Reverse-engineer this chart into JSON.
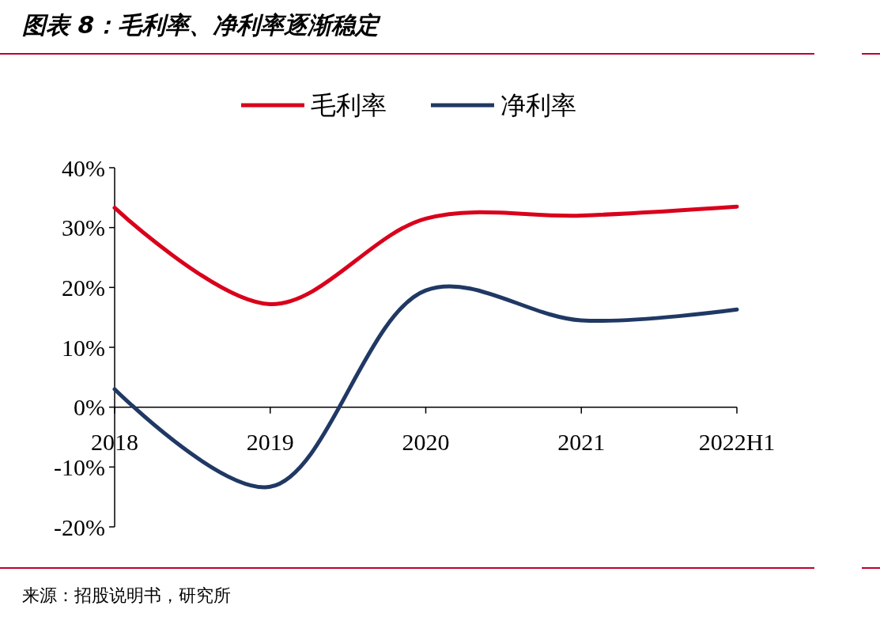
{
  "chart_data": {
    "type": "line",
    "title": "图表 8：毛利率、净利率逐渐稳定",
    "categories": [
      "2018",
      "2019",
      "2020",
      "2021",
      "2022H1"
    ],
    "series": [
      {
        "name": "毛利率",
        "color": "#d9001b",
        "values": [
          33.3,
          17.2,
          31.5,
          32.0,
          33.5
        ]
      },
      {
        "name": "净利率",
        "color": "#203864",
        "values": [
          3.0,
          -13.3,
          19.5,
          14.5,
          16.3
        ]
      }
    ],
    "ylim": [
      -20,
      40
    ],
    "yticks": [
      {
        "value": -20,
        "label": "-20%"
      },
      {
        "value": -10,
        "label": "-10%"
      },
      {
        "value": 0,
        "label": "0%"
      },
      {
        "value": 10,
        "label": "10%"
      },
      {
        "value": 20,
        "label": "20%"
      },
      {
        "value": 30,
        "label": "30%"
      },
      {
        "value": 40,
        "label": "40%"
      }
    ],
    "legend": "top",
    "grid": false,
    "marker": "none",
    "line_style": "solid",
    "annotations": [
      "来源：招股说明书，研究所"
    ]
  }
}
